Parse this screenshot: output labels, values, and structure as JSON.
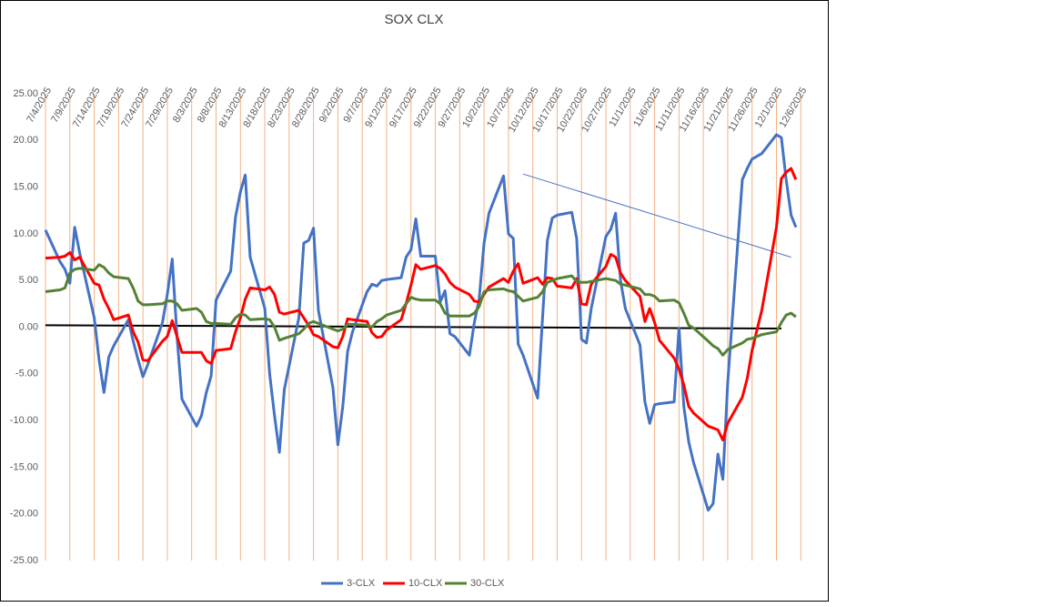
{
  "chart_data": {
    "type": "line",
    "title": "SOX CLX",
    "x": [
      "7/4/2025",
      "7/7/2025",
      "7/8/2025",
      "7/9/2025",
      "7/10/2025",
      "7/11/2025",
      "7/14/2025",
      "7/15/2025",
      "7/16/2025",
      "7/17/2025",
      "7/18/2025",
      "7/21/2025",
      "7/22/2025",
      "7/23/2025",
      "7/24/2025",
      "7/25/2025",
      "7/28/2025",
      "7/29/2025",
      "7/30/2025",
      "7/31/2025",
      "8/1/2025",
      "8/4/2025",
      "8/5/2025",
      "8/6/2025",
      "8/7/2025",
      "8/8/2025",
      "8/11/2025",
      "8/12/2025",
      "8/13/2025",
      "8/14/2025",
      "8/15/2025",
      "8/18/2025",
      "8/19/2025",
      "8/20/2025",
      "8/21/2025",
      "8/22/2025",
      "8/25/2025",
      "8/26/2025",
      "8/27/2025",
      "8/28/2025",
      "8/29/2025",
      "9/1/2025",
      "9/2/2025",
      "9/3/2025",
      "9/4/2025",
      "9/5/2025",
      "9/8/2025",
      "9/9/2025",
      "9/10/2025",
      "9/11/2025",
      "9/12/2025",
      "9/15/2025",
      "9/16/2025",
      "9/17/2025",
      "9/18/2025",
      "9/19/2025",
      "9/22/2025",
      "9/23/2025",
      "9/24/2025",
      "9/25/2025",
      "9/26/2025",
      "9/29/2025",
      "9/30/2025",
      "10/1/2025",
      "10/2/2025",
      "10/3/2025",
      "10/6/2025",
      "10/7/2025",
      "10/8/2025",
      "10/9/2025",
      "10/10/2025",
      "10/13/2025",
      "10/14/2025",
      "10/15/2025",
      "10/16/2025",
      "10/17/2025",
      "10/20/2025",
      "10/21/2025",
      "10/22/2025",
      "10/23/2025",
      "10/24/2025",
      "10/27/2025",
      "10/28/2025",
      "10/29/2025",
      "10/30/2025",
      "10/31/2025",
      "11/3/2025",
      "11/4/2025",
      "11/5/2025",
      "11/6/2025",
      "11/7/2025",
      "11/10/2025",
      "11/11/2025",
      "11/12/2025",
      "11/13/2025",
      "11/14/2025",
      "11/17/2025",
      "11/18/2025",
      "11/19/2025",
      "11/20/2025",
      "11/21/2025",
      "11/24/2025",
      "11/25/2025",
      "11/26/2025",
      "11/27/2025",
      "11/28/2025",
      "12/1/2025",
      "12/2/2025",
      "12/3/2025",
      "12/4/2025",
      "12/5/2025"
    ],
    "series": [
      {
        "name": "3-CLX",
        "color": "#4472c4",
        "values": [
          10.4,
          7.0,
          6.2,
          4.7,
          10.7,
          8.0,
          1.0,
          -3.5,
          -7.0,
          -3.2,
          -2.0,
          0.8,
          -1.5,
          -3.5,
          -5.3,
          -4.0,
          0.5,
          3.5,
          7.3,
          -1.0,
          -7.7,
          -10.6,
          -9.5,
          -7.0,
          -5.2,
          2.9,
          6.0,
          11.8,
          14.5,
          16.3,
          7.5,
          2.0,
          -5.0,
          -9.5,
          -13.4,
          -6.7,
          1.0,
          9.0,
          9.3,
          10.6,
          1.8,
          -6.5,
          -12.6,
          -8.5,
          -2.6,
          -0.5,
          3.8,
          4.6,
          4.4,
          5.0,
          5.1,
          5.3,
          7.5,
          8.3,
          11.6,
          7.6,
          7.6,
          2.7,
          3.9,
          -0.7,
          -1.0,
          -3.0,
          0.5,
          3.0,
          9.0,
          12.2,
          16.2,
          10.0,
          9.5,
          -1.8,
          -3.0,
          -7.6,
          1.0,
          9.3,
          11.7,
          12.0,
          12.3,
          9.5,
          -1.3,
          -1.7,
          2.0,
          9.7,
          10.5,
          12.2,
          5.0,
          2.0,
          -1.9,
          -8.0,
          -10.3,
          -8.3,
          -8.2,
          -8.0,
          -0.1,
          -8.5,
          -12.3,
          -14.5,
          -19.6,
          -18.9,
          -13.6,
          -16.3,
          -6.0,
          15.8,
          17.0,
          18.0,
          18.3,
          18.6,
          20.6,
          20.3,
          15.8,
          12.0,
          10.7
        ]
      },
      {
        "name": "10-CLX",
        "color": "#ff0000",
        "values": [
          7.4,
          7.5,
          7.6,
          8.0,
          7.2,
          7.5,
          4.7,
          4.5,
          3.0,
          2.0,
          0.8,
          1.3,
          -0.5,
          -1.6,
          -3.5,
          -3.6,
          -1.5,
          -1.0,
          0.7,
          -1.0,
          -2.7,
          -2.7,
          -2.7,
          -3.6,
          -3.9,
          -2.5,
          -2.3,
          -0.5,
          1.0,
          3.0,
          4.2,
          4.0,
          4.3,
          3.5,
          1.6,
          1.4,
          1.8,
          1.0,
          0.2,
          -0.8,
          -1.0,
          -2.1,
          -2.2,
          -1.0,
          0.9,
          0.8,
          0.6,
          -0.6,
          -1.1,
          -1.0,
          -0.3,
          0.8,
          2.5,
          4.5,
          6.7,
          6.2,
          6.6,
          6.3,
          5.7,
          4.8,
          4.3,
          3.5,
          2.8,
          2.7,
          3.5,
          4.3,
          5.2,
          4.8,
          6.0,
          6.8,
          4.7,
          5.3,
          4.6,
          5.3,
          5.2,
          4.4,
          4.2,
          5.2,
          2.5,
          2.4,
          4.6,
          6.5,
          7.8,
          7.5,
          5.8,
          5.0,
          3.3,
          0.6,
          2.0,
          0.5,
          -1.4,
          -3.3,
          -4.5,
          -6.2,
          -8.5,
          -9.2,
          -10.6,
          -10.8,
          -11.0,
          -12.1,
          -10.3,
          -7.5,
          -5.5,
          -2.5,
          -0.3,
          1.8,
          10.7,
          15.9,
          16.6,
          17.0,
          15.8
        ]
      },
      {
        "name": "30-CLX",
        "color": "#548235",
        "values": [
          3.8,
          4.0,
          4.2,
          5.8,
          6.2,
          6.3,
          6.1,
          6.7,
          6.4,
          5.8,
          5.4,
          5.2,
          4.2,
          2.8,
          2.4,
          2.4,
          2.5,
          2.8,
          2.8,
          2.5,
          1.8,
          2.0,
          1.6,
          0.6,
          0.4,
          0.4,
          0.3,
          1.0,
          1.4,
          1.3,
          0.8,
          0.9,
          0.8,
          0.0,
          -1.4,
          -1.2,
          -0.7,
          -0.2,
          0.4,
          0.6,
          0.4,
          -0.2,
          -0.4,
          -0.2,
          0.3,
          0.3,
          0.2,
          0.0,
          0.6,
          0.9,
          1.3,
          1.8,
          2.5,
          3.2,
          3.0,
          2.9,
          2.9,
          2.5,
          1.5,
          1.2,
          1.2,
          1.2,
          1.5,
          2.2,
          3.8,
          4.0,
          4.1,
          3.9,
          3.8,
          3.3,
          2.8,
          3.2,
          3.8,
          4.8,
          5.0,
          5.2,
          5.5,
          4.9,
          4.8,
          4.8,
          4.9,
          5.2,
          5.1,
          5.0,
          4.6,
          4.5,
          4.1,
          3.5,
          3.5,
          3.3,
          2.8,
          2.9,
          2.6,
          1.5,
          0.2,
          -0.1,
          -1.5,
          -2.0,
          -2.3,
          -3.0,
          -2.4,
          -1.7,
          -1.3,
          -1.2,
          -1.0,
          -0.8,
          -0.5,
          0.5,
          1.3,
          1.5,
          1.1
        ]
      }
    ],
    "trendlines": [
      {
        "color": "#4472c4",
        "x": [
          "10/10/2025",
          "12/4/2025"
        ],
        "values": [
          16.4,
          7.5
        ]
      },
      {
        "color": "#000000",
        "x": [
          "7/4/2025",
          "12/2/2025"
        ],
        "values": [
          0.2,
          -0.15
        ]
      }
    ],
    "xlim": [
      "7/4/2025",
      "12/8/2025"
    ],
    "xticks": [
      "7/4/2025",
      "7/9/2025",
      "7/14/2025",
      "7/19/2025",
      "7/24/2025",
      "7/29/2025",
      "8/3/2025",
      "8/8/2025",
      "8/13/2025",
      "8/18/2025",
      "8/23/2025",
      "8/28/2025",
      "9/2/2025",
      "9/7/2025",
      "9/12/2025",
      "9/17/2025",
      "9/22/2025",
      "9/27/2025",
      "10/2/2025",
      "10/7/2025",
      "10/12/2025",
      "10/17/2025",
      "10/22/2025",
      "10/27/2025",
      "11/1/2025",
      "11/6/2025",
      "11/11/2025",
      "11/16/2025",
      "11/21/2025",
      "11/26/2025",
      "12/1/2025",
      "12/6/2025"
    ],
    "ylim": [
      -25,
      25
    ],
    "yticks": [
      {
        "value": -25,
        "label": "-25.00"
      },
      {
        "value": -20,
        "label": "-20.00"
      },
      {
        "value": -15,
        "label": "-15.00"
      },
      {
        "value": -10,
        "label": "-10.00"
      },
      {
        "value": -5,
        "label": "-5.00"
      },
      {
        "value": 0,
        "label": "0.00"
      },
      {
        "value": 5,
        "label": "5.00"
      },
      {
        "value": 10,
        "label": "10.00"
      },
      {
        "value": 15,
        "label": "15.00"
      },
      {
        "value": 20,
        "label": "20.00"
      },
      {
        "value": 25,
        "label": "25.00"
      }
    ],
    "grid_color": "#f4b183",
    "legend": "bottom"
  }
}
